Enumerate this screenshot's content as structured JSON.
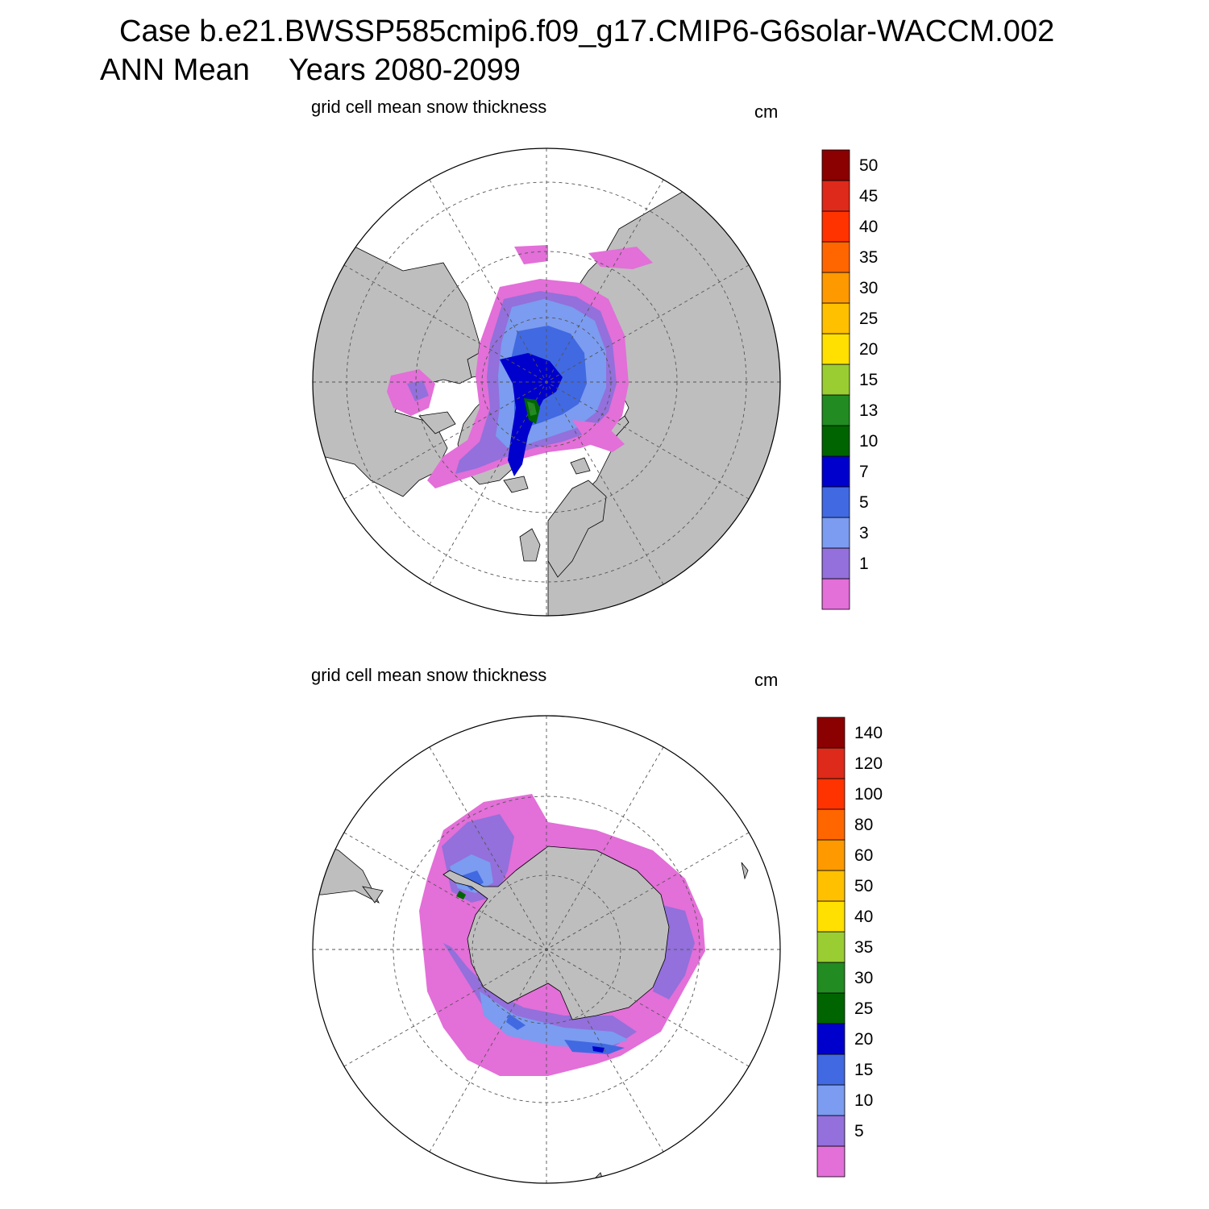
{
  "header": {
    "case_line": "Case b.e21.BWSSP585cmip6.f09_g17.CMIP6-G6solar-WACCM.002",
    "season": "ANN Mean",
    "years": "Years 2080-2099"
  },
  "colors": {
    "land": "#bebebe",
    "ocean_no_data": "#ffffff",
    "contour_fill": [
      "#e36fd8",
      "#9370db",
      "#7b9cf0",
      "#4169e1",
      "#0000cd",
      "#006400",
      "#228b22",
      "#9acd32",
      "#ffe000",
      "#ffc000",
      "#ff9900",
      "#ff6600",
      "#ff3300",
      "#dd2a1a",
      "#8b0000"
    ]
  },
  "panels": [
    {
      "id": "arctic",
      "title": "grid cell mean snow thickness",
      "units": "cm",
      "projection": "north polar stereographic",
      "colorbar_levels": [
        "1",
        "3",
        "5",
        "7",
        "10",
        "13",
        "15",
        "20",
        "25",
        "30",
        "35",
        "40",
        "45",
        "50"
      ]
    },
    {
      "id": "antarctic",
      "title": "grid cell mean snow thickness",
      "units": "cm",
      "projection": "south polar stereographic",
      "colorbar_levels": [
        "5",
        "10",
        "15",
        "20",
        "25",
        "30",
        "35",
        "40",
        "50",
        "60",
        "80",
        "100",
        "120",
        "140"
      ]
    }
  ]
}
